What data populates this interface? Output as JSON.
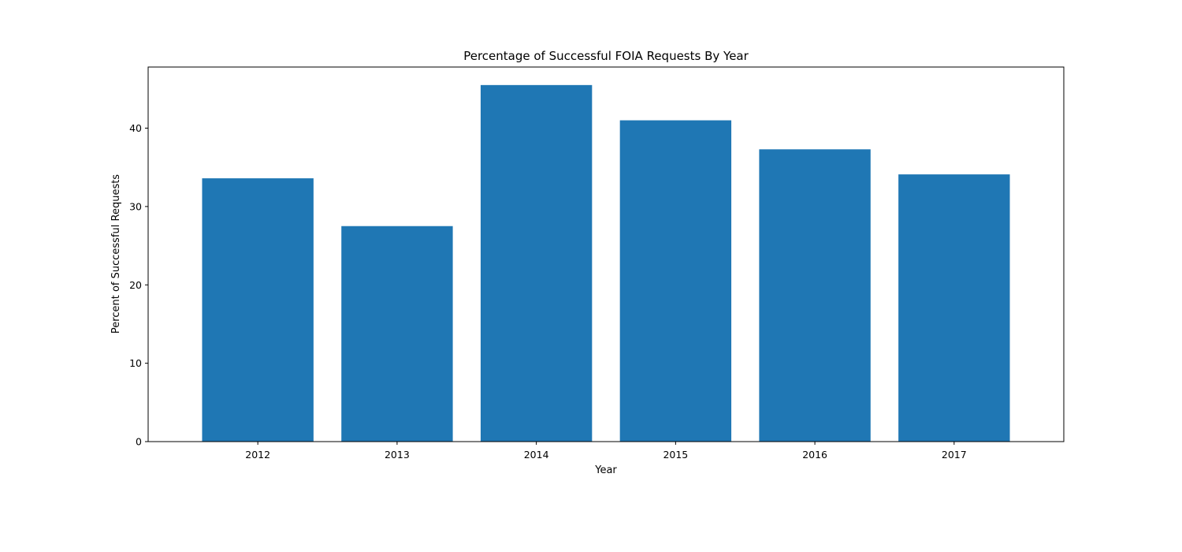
{
  "chart_data": {
    "type": "bar",
    "title": "Percentage of Successful FOIA Requests By Year",
    "xlabel": "Year",
    "ylabel": "Percent of Successful Requests",
    "categories": [
      "2012",
      "2013",
      "2014",
      "2015",
      "2016",
      "2017"
    ],
    "values": [
      33.6,
      27.5,
      45.5,
      41.0,
      37.3,
      34.1
    ],
    "ylim": [
      0,
      47.8
    ],
    "yticks": [
      "0",
      "10",
      "20",
      "30",
      "40"
    ],
    "bar_color": "#1f77b4",
    "grid": false
  }
}
